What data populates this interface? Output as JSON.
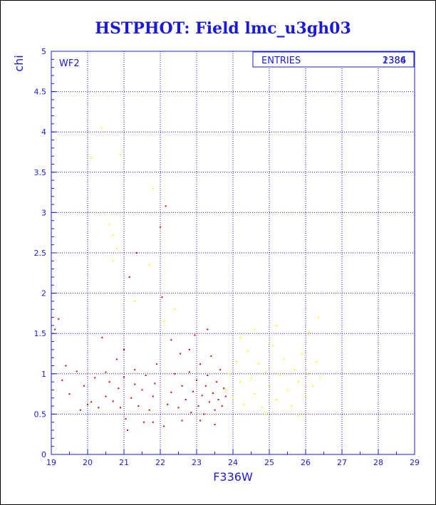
{
  "chart_data": {
    "type": "scatter",
    "title": "HSTPHOT: Field lmc_u3gh03",
    "xlabel": "F336W",
    "ylabel": "chi",
    "xlim": [
      19,
      29
    ],
    "ylim": [
      0,
      5
    ],
    "xticks": [
      "19",
      "20",
      "21",
      "22",
      "23",
      "24",
      "25",
      "26",
      "27",
      "28",
      "29"
    ],
    "yticks": [
      "0",
      "0.5",
      "1",
      "1.5",
      "2",
      "2.5",
      "3",
      "3.5",
      "4",
      "4.5",
      "5"
    ],
    "grid": true,
    "panel_label": "WF2",
    "stats_box": {
      "label": "ENTRIES",
      "values": [
        "2386",
        "1384"
      ]
    },
    "series_colors": {
      "red": "#e00000",
      "yellow": "#ffff00"
    },
    "series": [
      {
        "color": "#e00000",
        "points": [
          [
            19.1,
            1.55
          ],
          [
            19.2,
            1.68
          ],
          [
            19.3,
            0.92
          ],
          [
            19.4,
            1.1
          ],
          [
            19.5,
            0.75
          ],
          [
            19.7,
            1.03
          ],
          [
            19.8,
            0.55
          ],
          [
            19.9,
            0.85
          ],
          [
            20.1,
            0.65
          ],
          [
            20.2,
            0.95
          ],
          [
            20.3,
            0.58
          ],
          [
            20.4,
            1.45
          ],
          [
            20.5,
            1.02
          ],
          [
            20.5,
            0.72
          ],
          [
            20.6,
            0.9
          ],
          [
            20.7,
            0.66
          ],
          [
            20.8,
            1.18
          ],
          [
            20.85,
            0.82
          ],
          [
            20.9,
            0.58
          ],
          [
            21.0,
            0.96
          ],
          [
            21.05,
            0.44
          ],
          [
            21.1,
            0.3
          ],
          [
            21.15,
            2.2
          ],
          [
            21.2,
            0.7
          ],
          [
            21.3,
            0.87
          ],
          [
            21.3,
            1.05
          ],
          [
            21.35,
            2.5
          ],
          [
            21.4,
            0.6
          ],
          [
            21.5,
            0.8
          ],
          [
            21.55,
            0.4
          ],
          [
            21.6,
            0.98
          ],
          [
            21.7,
            0.55
          ],
          [
            21.8,
            0.72
          ],
          [
            21.85,
            0.88
          ],
          [
            21.9,
            1.12
          ],
          [
            22.0,
            2.82
          ],
          [
            22.05,
            1.95
          ],
          [
            22.15,
            3.08
          ],
          [
            22.2,
            0.62
          ],
          [
            22.3,
            0.77
          ],
          [
            22.4,
            1.0
          ],
          [
            22.5,
            0.58
          ],
          [
            22.55,
            1.25
          ],
          [
            22.6,
            0.85
          ],
          [
            22.7,
            0.68
          ],
          [
            22.8,
            1.02
          ],
          [
            22.85,
            0.52
          ],
          [
            22.9,
            0.78
          ],
          [
            23.0,
            0.92
          ],
          [
            23.05,
            0.6
          ],
          [
            23.1,
            1.12
          ],
          [
            23.15,
            0.73
          ],
          [
            23.2,
            0.5
          ],
          [
            23.25,
            0.85
          ],
          [
            23.3,
            0.98
          ],
          [
            23.35,
            0.65
          ],
          [
            23.4,
            1.22
          ],
          [
            23.45,
            0.76
          ],
          [
            23.5,
            0.55
          ],
          [
            23.55,
            0.9
          ],
          [
            23.6,
            0.68
          ],
          [
            23.65,
            1.05
          ],
          [
            23.7,
            0.6
          ],
          [
            23.75,
            0.82
          ],
          [
            23.8,
            0.72
          ],
          [
            21.8,
            0.4
          ],
          [
            22.1,
            0.35
          ],
          [
            22.6,
            0.42
          ],
          [
            23.1,
            0.42
          ],
          [
            23.5,
            0.37
          ],
          [
            22.3,
            1.42
          ],
          [
            22.95,
            1.48
          ],
          [
            23.3,
            1.55
          ],
          [
            20.0,
            0.62
          ],
          [
            21.0,
            1.3
          ],
          [
            22.8,
            1.3
          ]
        ]
      },
      {
        "color": "#ffff00",
        "points": [
          [
            20.4,
            4.05
          ],
          [
            20.9,
            3.72
          ],
          [
            20.1,
            3.68
          ],
          [
            21.8,
            3.3
          ],
          [
            20.6,
            2.85
          ],
          [
            20.7,
            2.72
          ],
          [
            20.8,
            2.55
          ],
          [
            21.7,
            2.35
          ],
          [
            20.7,
            2.4
          ],
          [
            21.3,
            1.9
          ],
          [
            22.1,
            1.65
          ],
          [
            22.4,
            1.8
          ],
          [
            23.8,
            0.8
          ],
          [
            23.9,
            1.0
          ],
          [
            24.0,
            0.7
          ],
          [
            24.1,
            1.15
          ],
          [
            24.2,
            0.9
          ],
          [
            24.3,
            0.62
          ],
          [
            24.4,
            1.28
          ],
          [
            24.5,
            0.95
          ],
          [
            24.6,
            0.75
          ],
          [
            24.7,
            1.12
          ],
          [
            24.8,
            0.58
          ],
          [
            24.9,
            1.02
          ],
          [
            25.0,
            0.85
          ],
          [
            25.1,
            1.35
          ],
          [
            25.2,
            0.68
          ],
          [
            25.3,
            0.98
          ],
          [
            25.4,
            1.18
          ],
          [
            25.5,
            0.8
          ],
          [
            25.6,
            0.6
          ],
          [
            25.7,
            1.05
          ],
          [
            25.8,
            0.9
          ],
          [
            25.9,
            1.25
          ],
          [
            26.0,
            0.72
          ],
          [
            26.1,
            1.0
          ],
          [
            26.2,
            0.85
          ],
          [
            26.3,
            1.15
          ],
          [
            26.4,
            0.95
          ],
          [
            26.1,
            1.52
          ],
          [
            26.35,
            1.7
          ],
          [
            24.6,
            1.55
          ],
          [
            25.2,
            1.6
          ],
          [
            24.2,
            1.45
          ],
          [
            25.8,
            0.48
          ],
          [
            24.9,
            0.5
          ]
        ]
      }
    ]
  }
}
